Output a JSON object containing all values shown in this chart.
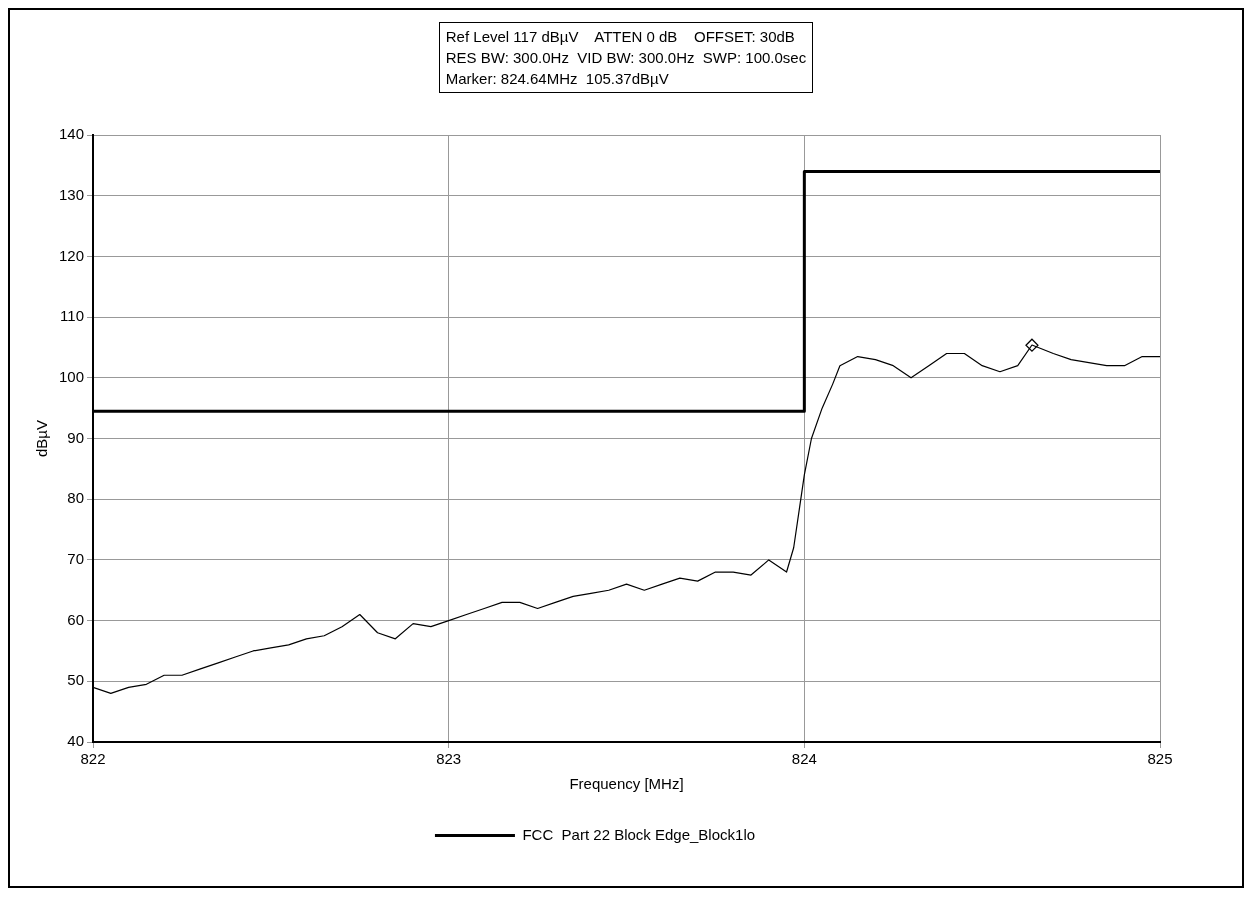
{
  "chart_data": {
    "type": "line",
    "annotations": [
      "Ref Level 117 dBµV    ATTEN 0 dB    OFFSET: 30dB",
      "RES BW: 300.0Hz  VID BW: 300.0Hz  SWP: 100.0sec",
      "Marker: 824.64MHz  105.37dBµV"
    ],
    "xlabel": "Frequency [MHz]",
    "ylabel": "dBµV",
    "xlim": [
      822,
      825
    ],
    "xticks": [
      822,
      823,
      824,
      825
    ],
    "ylim": [
      40,
      140
    ],
    "yticks": [
      40,
      50,
      60,
      70,
      80,
      90,
      100,
      110,
      120,
      130,
      140
    ],
    "grid": true,
    "legend": "bottom",
    "line_style": "solid",
    "series": [
      {
        "type": "line",
        "color": "#000000",
        "x": [
          822.0,
          822.05,
          822.1,
          822.15,
          822.2,
          822.25,
          822.3,
          822.35,
          822.4,
          822.45,
          822.5,
          822.55,
          822.6,
          822.65,
          822.7,
          822.75,
          822.8,
          822.85,
          822.9,
          822.95,
          823.0,
          823.05,
          823.1,
          823.15,
          823.2,
          823.25,
          823.3,
          823.35,
          823.4,
          823.45,
          823.5,
          823.55,
          823.6,
          823.65,
          823.7,
          823.75,
          823.8,
          823.85,
          823.9,
          823.95,
          823.97,
          824.0,
          824.02,
          824.05,
          824.08,
          824.1,
          824.15,
          824.2,
          824.25,
          824.3,
          824.35,
          824.4,
          824.45,
          824.5,
          824.55,
          824.6,
          824.64,
          824.7,
          824.75,
          824.8,
          824.85,
          824.9,
          824.95,
          825.0
        ],
        "values": [
          49,
          48,
          49,
          49.5,
          51,
          51,
          52,
          53,
          54,
          55,
          55.5,
          56,
          57,
          57.5,
          59,
          61,
          58,
          57,
          59.5,
          59,
          60,
          61,
          62,
          63,
          63,
          62,
          63,
          64,
          64.5,
          65,
          66,
          65,
          66,
          67,
          66.5,
          68,
          68,
          67.5,
          70,
          68,
          72,
          84,
          90,
          95,
          99,
          102,
          103.5,
          103,
          102,
          100,
          102,
          104,
          104,
          102,
          101,
          102,
          105.4,
          104,
          103,
          102.5,
          102,
          102,
          103.5,
          103.5
        ]
      },
      {
        "type": "line",
        "name": "FCC  Part 22 Block Edge_Block1lo",
        "color": "#000000",
        "x": [
          822,
          824,
          824,
          825
        ],
        "values": [
          94.5,
          94.5,
          134,
          134
        ]
      },
      {
        "type": "scatter",
        "marker": "diamond",
        "color": "#000000",
        "x": [
          824.64
        ],
        "values": [
          105.37
        ]
      }
    ]
  }
}
